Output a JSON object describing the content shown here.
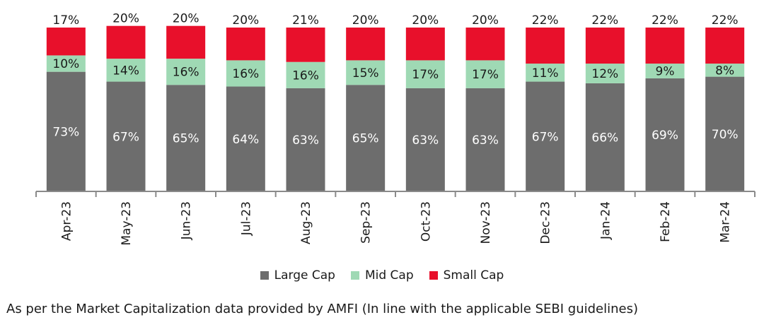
{
  "chart_data": {
    "type": "bar",
    "stacked": true,
    "categories": [
      "Apr-23",
      "May-23",
      "Jun-23",
      "Jul-23",
      "Aug-23",
      "Sep-23",
      "Oct-23",
      "Nov-23",
      "Dec-23",
      "Jan-24",
      "Feb-24",
      "Mar-24"
    ],
    "series": [
      {
        "name": "Large Cap",
        "color": "#6d6d6d",
        "values": [
          73,
          67,
          65,
          64,
          63,
          65,
          63,
          63,
          67,
          66,
          69,
          70
        ]
      },
      {
        "name": "Mid Cap",
        "color": "#9fd9b4",
        "values": [
          10,
          14,
          16,
          16,
          16,
          15,
          17,
          17,
          11,
          12,
          9,
          8
        ]
      },
      {
        "name": "Small Cap",
        "color": "#e8102b",
        "values": [
          17,
          20,
          20,
          20,
          21,
          20,
          20,
          20,
          22,
          22,
          22,
          22
        ]
      }
    ],
    "data_labels": {
      "Large Cap": [
        "73%",
        "67%",
        "65%",
        "64%",
        "63%",
        "65%",
        "63%",
        "63%",
        "67%",
        "66%",
        "69%",
        "70%"
      ],
      "Mid Cap": [
        "10%",
        "14%",
        "16%",
        "16%",
        "16%",
        "15%",
        "17%",
        "17%",
        "11%",
        "12%",
        "9%",
        "8%"
      ],
      "Small Cap": [
        "17%",
        "20%",
        "20%",
        "20%",
        "21%",
        "20%",
        "20%",
        "20%",
        "22%",
        "22%",
        "22%",
        "22%"
      ]
    },
    "label_colors": {
      "Large Cap": "#ffffff",
      "Mid Cap": "#1a1a1a",
      "Small Cap": "#1a1a1a"
    },
    "legend_position": "bottom",
    "grid": false,
    "ylim": [
      0,
      100
    ]
  },
  "footnote": "As per the Market Capitalization data provided by AMFI (In line with the applicable SEBI guidelines)"
}
